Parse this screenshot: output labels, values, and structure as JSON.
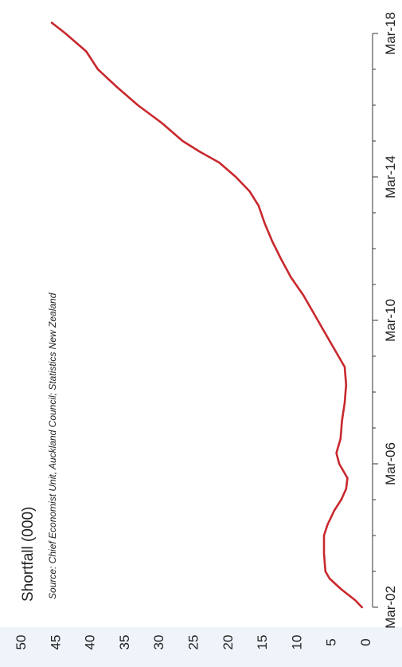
{
  "chart_data": {
    "type": "line",
    "orientation": "rotated 90 degrees counter-clockwise",
    "title": "Shortfall (000)",
    "source": "Source: Chief Economist Unit, Auckland Council; Statistics New Zealand",
    "x_ticks": [
      "Mar-02",
      "Mar-06",
      "Mar-10",
      "Mar-14",
      "Mar-18"
    ],
    "x_tick_years": [
      2002,
      2006,
      2010,
      2014,
      2018
    ],
    "xlim": [
      2002,
      2018
    ],
    "ylim": [
      0,
      50
    ],
    "y_ticks": [
      0,
      5,
      10,
      15,
      20,
      25,
      30,
      35,
      40,
      45,
      50
    ],
    "series": [
      {
        "color": "#c8282d",
        "points": [
          [
            2002.0,
            0.5
          ],
          [
            2002.2,
            1.5
          ],
          [
            2002.5,
            3.5
          ],
          [
            2002.8,
            5.2
          ],
          [
            2003.0,
            5.8
          ],
          [
            2003.5,
            6.0
          ],
          [
            2004.0,
            6.0
          ],
          [
            2004.3,
            5.5
          ],
          [
            2004.7,
            4.5
          ],
          [
            2005.0,
            3.5
          ],
          [
            2005.3,
            2.8
          ],
          [
            2005.6,
            2.6
          ],
          [
            2006.0,
            3.8
          ],
          [
            2006.3,
            4.2
          ],
          [
            2006.7,
            3.6
          ],
          [
            2007.2,
            3.4
          ],
          [
            2007.7,
            3.0
          ],
          [
            2008.2,
            2.8
          ],
          [
            2008.7,
            3.0
          ],
          [
            2009.2,
            4.5
          ],
          [
            2009.7,
            6.0
          ],
          [
            2010.2,
            7.5
          ],
          [
            2010.7,
            9.0
          ],
          [
            2011.2,
            10.8
          ],
          [
            2011.7,
            12.2
          ],
          [
            2012.2,
            13.5
          ],
          [
            2012.7,
            14.6
          ],
          [
            2013.2,
            15.5
          ],
          [
            2013.6,
            16.8
          ],
          [
            2014.0,
            18.8
          ],
          [
            2014.4,
            21.2
          ],
          [
            2014.7,
            24.0
          ],
          [
            2015.0,
            26.5
          ],
          [
            2015.5,
            29.5
          ],
          [
            2016.0,
            33.0
          ],
          [
            2016.5,
            36.0
          ],
          [
            2017.0,
            38.8
          ],
          [
            2017.5,
            40.5
          ],
          [
            2018.0,
            43.5
          ],
          [
            2018.3,
            45.5
          ]
        ]
      }
    ],
    "grid": false
  }
}
